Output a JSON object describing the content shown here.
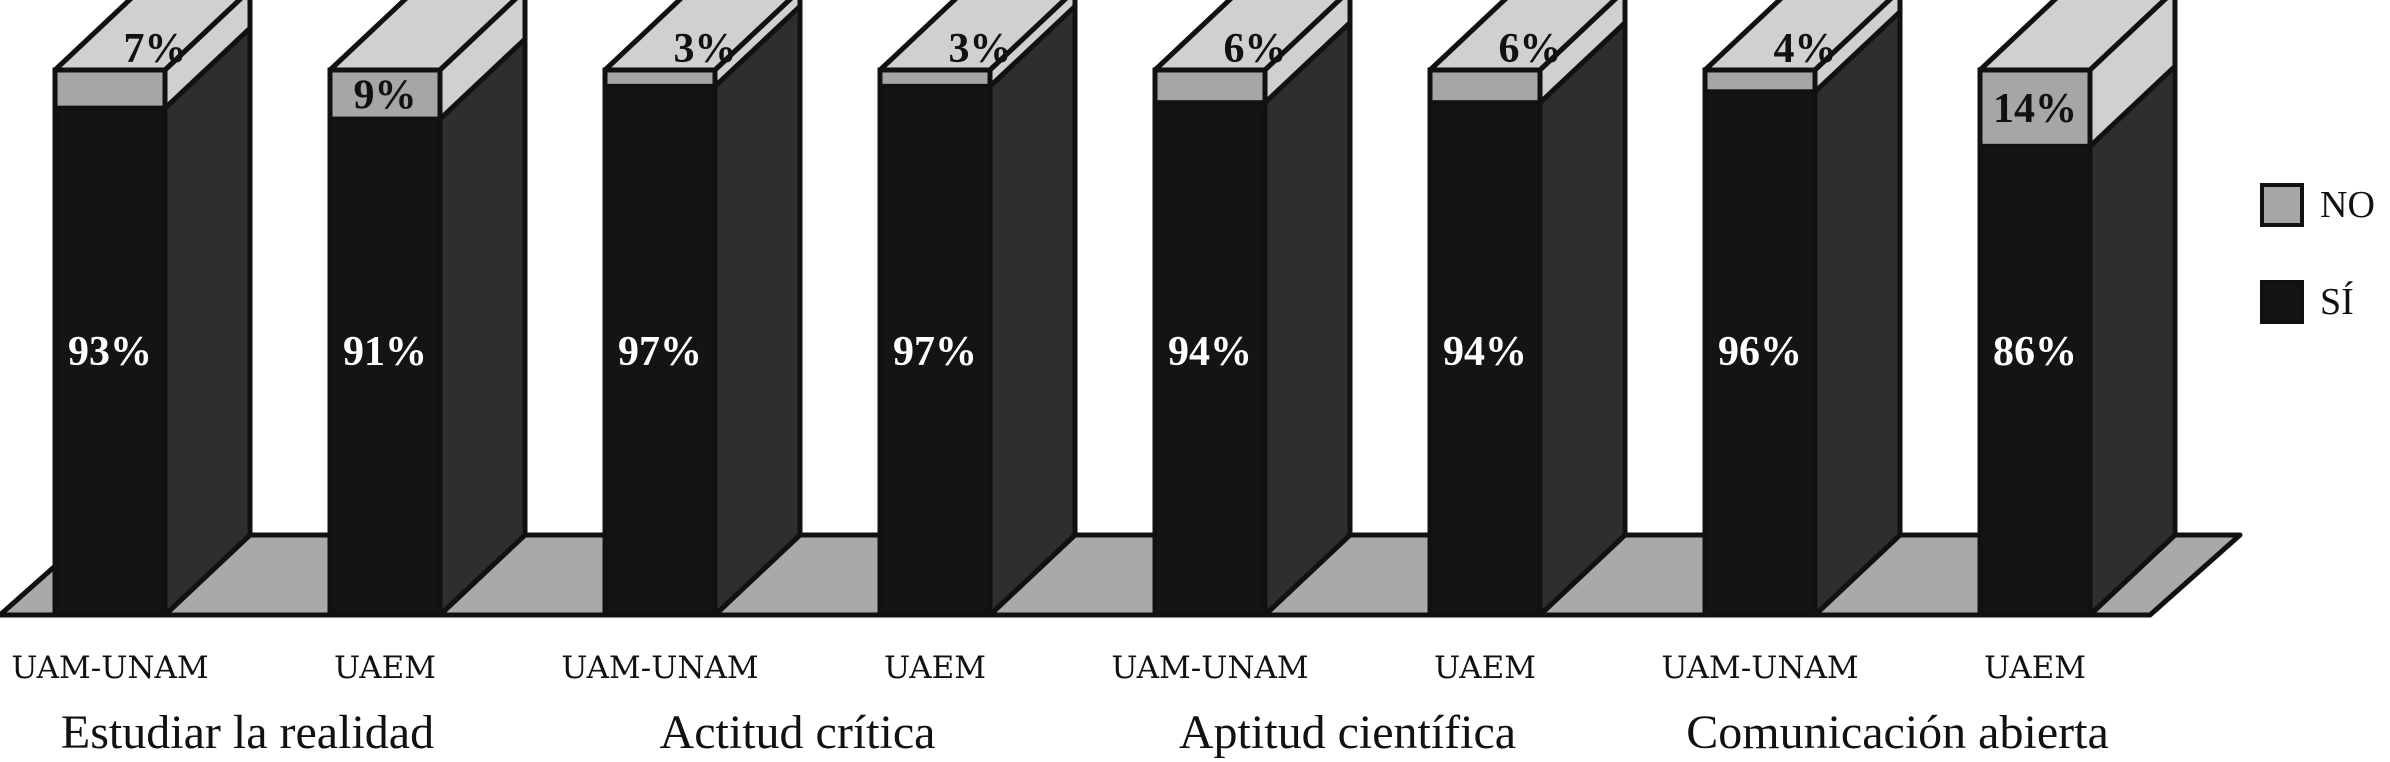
{
  "chart_data": {
    "type": "bar",
    "stacked": true,
    "three_d": true,
    "groups": [
      "Estudiar la realidad",
      "Actitud crítica",
      "Aptitud científica",
      "Comunicación abierta"
    ],
    "categories": [
      "UAM-UNAM",
      "UAEM",
      "UAM-UNAM",
      "UAEM",
      "UAM-UNAM",
      "UAEM",
      "UAM-UNAM",
      "UAEM"
    ],
    "series": [
      {
        "name": "SÍ",
        "color": "#141414",
        "values": [
          93,
          91,
          97,
          97,
          94,
          94,
          96,
          86
        ]
      },
      {
        "name": "NO",
        "color": "#a6a6a6",
        "values": [
          7,
          9,
          3,
          3,
          6,
          6,
          4,
          14
        ]
      }
    ],
    "value_labels": {
      "SÍ": [
        "93%",
        "91%",
        "97%",
        "97%",
        "94%",
        "94%",
        "96%",
        "86%"
      ],
      "NO": [
        "7%",
        "9%",
        "3%",
        "3%",
        "6%",
        "6%",
        "4%",
        "14%"
      ]
    },
    "ylim": [
      0,
      100
    ],
    "grid": false,
    "legend_position": "right",
    "legend": [
      {
        "label": "NO",
        "color": "#a6a6a6"
      },
      {
        "label": "SÍ",
        "color": "#141414"
      }
    ],
    "floor_color": "#a9a9a9",
    "side_color": "#2e2e2e",
    "top_color": "#d0d0d0"
  }
}
